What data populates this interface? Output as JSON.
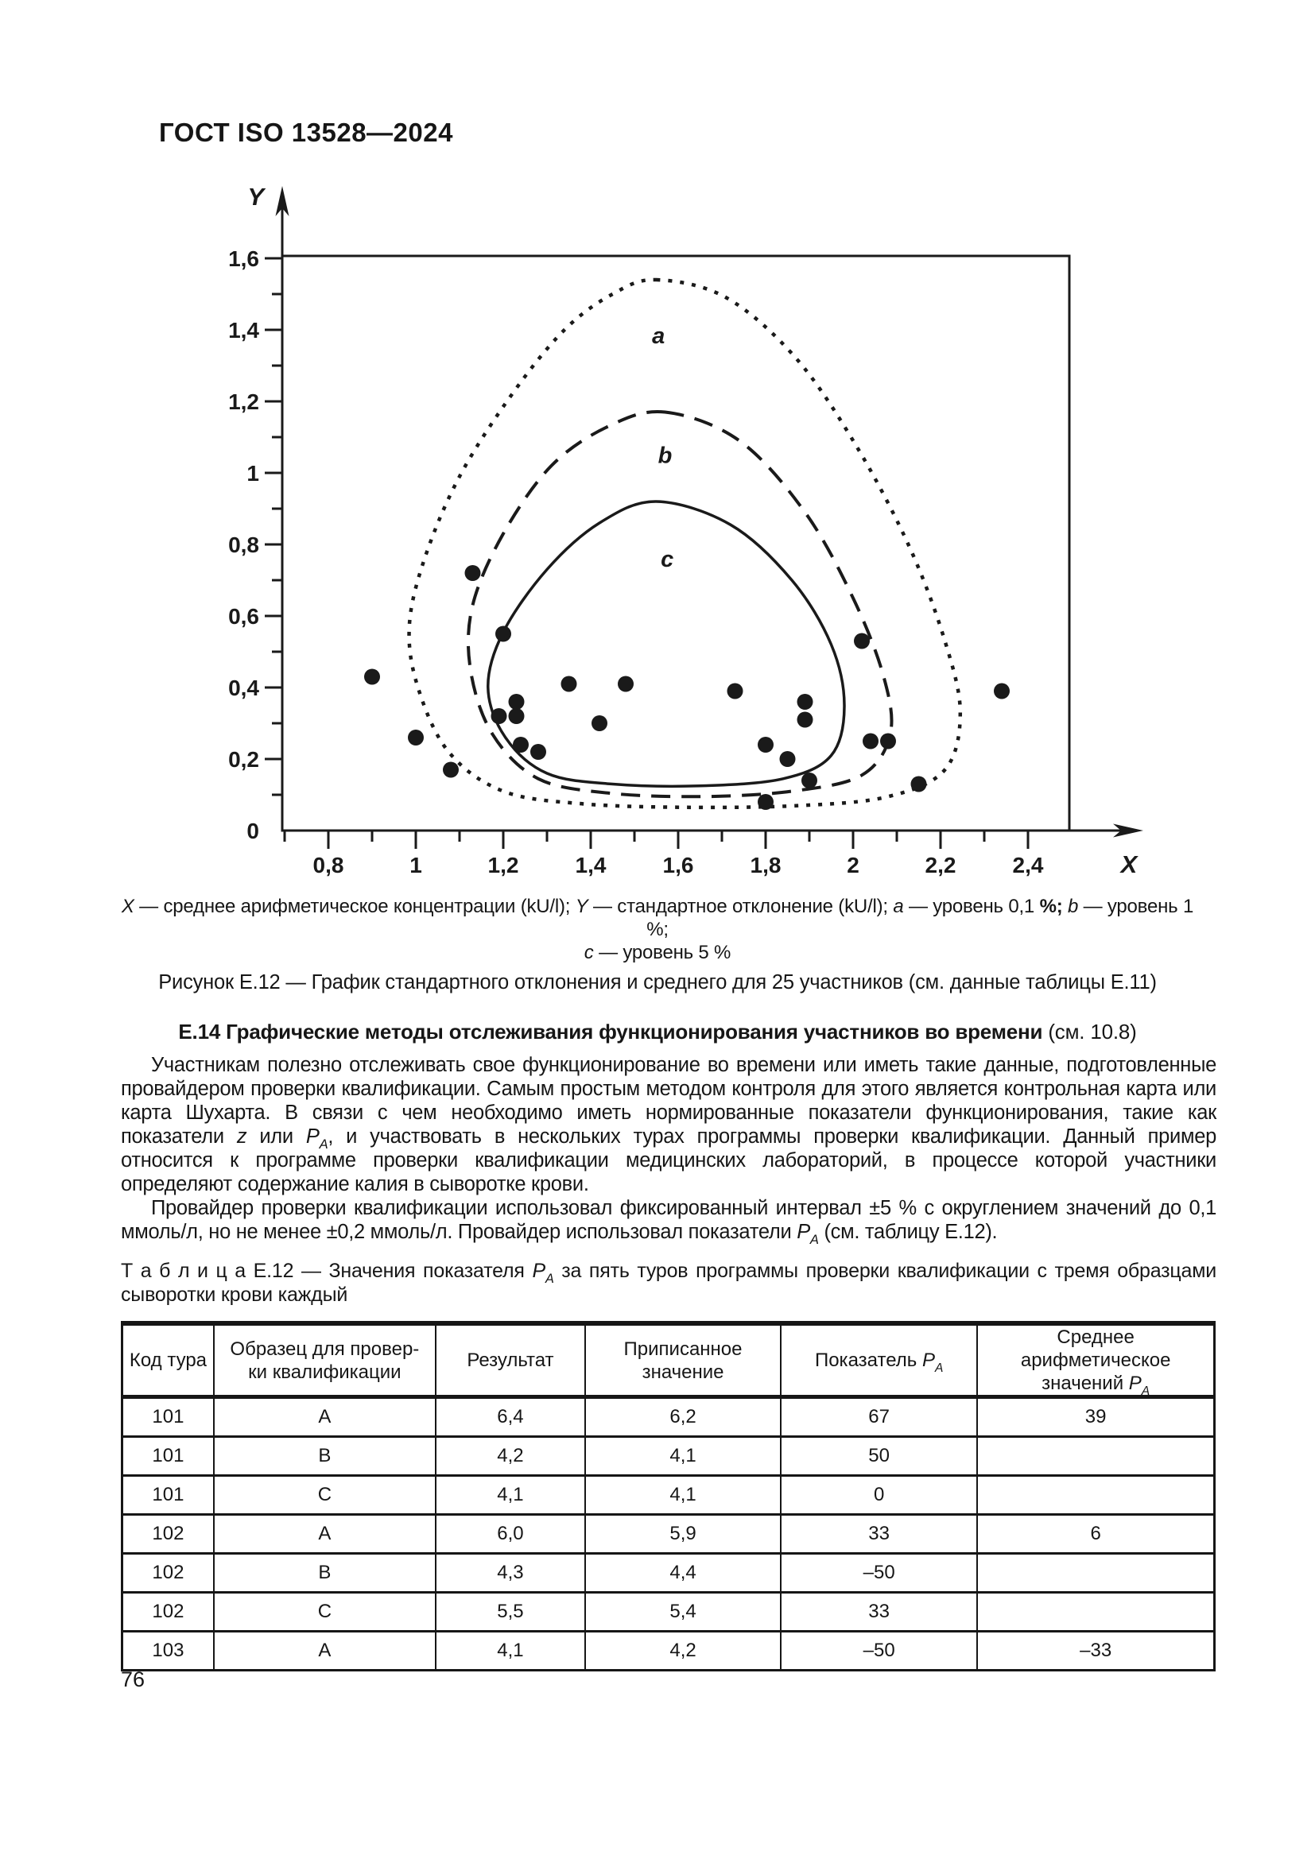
{
  "page": {
    "header": "ГОСТ ISO 13528—2024",
    "page_number": "76"
  },
  "figure": {
    "legend_line1": [
      {
        "t": "X",
        "i": 1
      },
      {
        "t": " — среднее арифметическое концентрации (kU/l); "
      },
      {
        "t": "Y",
        "i": 1
      },
      {
        "t": " — стандартное отклонение (kU/l); "
      },
      {
        "t": "a",
        "i": 1
      },
      {
        "t": " — уровень 0,1 "
      },
      {
        "t": "%;",
        "b": 1
      },
      {
        "t": " "
      },
      {
        "t": "b",
        "i": 1
      },
      {
        "t": " — уровень 1 %;"
      }
    ],
    "legend_line2": [
      {
        "t": "c",
        "i": 1
      },
      {
        "t": " — уровень 5 %"
      }
    ],
    "title": "Рисунок Е.12 — График стандартного отклонения и среднего для 25 участников (см. данные таблицы Е.11)"
  },
  "section": {
    "heading": "Е.14 Графические методы отслеживания функционирования участников во времени",
    "heading_ref": " (см. 10.8)",
    "p1": [
      {
        "t": "Участникам полезно отслеживать свое функционирование во времени или иметь такие данные, подготовленные провайдером проверки квалификации. Самым простым методом контроля для этого является контрольная карта или карта Шухарта. В связи с чем необходимо иметь нормированные показатели функционирования, такие как показатели "
      },
      {
        "t": "z",
        "i": 1
      },
      {
        "t": " или "
      },
      {
        "t": "P",
        "i": 1
      },
      {
        "t": "A",
        "i": 1,
        "sub": 1
      },
      {
        "t": ", и участвовать в нескольких турах программы проверки квалификации. Данный пример относится к программе проверки квалификации медицинских лабораторий, в процессе которой участники определяют содержание калия в сыворотке крови."
      }
    ],
    "p2": [
      {
        "t": "Провайдер проверки квалификации использовал фиксированный интервал ±5 % с округлением значений до 0,1 ммоль/л, но не менее ±0,2 ммоль/л. Провайдер использовал показатели "
      },
      {
        "t": "P",
        "i": 1
      },
      {
        "t": "A",
        "i": 1,
        "sub": 1
      },
      {
        "t": " (см. таблицу Е.12)."
      }
    ]
  },
  "table": {
    "caption": [
      {
        "t": "Т а б л и ц а   Е.12 — Значения показателя "
      },
      {
        "t": "P",
        "i": 1
      },
      {
        "t": "A",
        "i": 1,
        "sub": 1
      },
      {
        "t": " за пять туров программы проверки квалификации с тремя образцами сыворотки крови каждый"
      }
    ],
    "columns": [
      {
        "width": 8.4,
        "label": [
          {
            "t": "Код тура"
          }
        ]
      },
      {
        "width": 20.3,
        "label": [
          {
            "t": "Образец для провер-"
          },
          {
            "br": 1
          },
          {
            "t": "ки квалификации"
          }
        ]
      },
      {
        "width": 13.7,
        "label": [
          {
            "t": "Результат"
          }
        ]
      },
      {
        "width": 17.9,
        "label": [
          {
            "t": "Приписанное"
          },
          {
            "br": 1
          },
          {
            "t": "значение"
          }
        ]
      },
      {
        "width": 18.0,
        "label": [
          {
            "t": "Показатель "
          },
          {
            "t": "P",
            "i": 1
          },
          {
            "t": "A",
            "i": 1,
            "sub": 1
          }
        ]
      },
      {
        "width": 21.7,
        "label": [
          {
            "t": "Среднее арифметическое"
          },
          {
            "br": 1
          },
          {
            "t": "значений "
          },
          {
            "t": "P",
            "i": 1
          },
          {
            "t": "A",
            "i": 1,
            "sub": 1
          }
        ]
      }
    ],
    "rows": [
      [
        "101",
        "A",
        "6,4",
        "6,2",
        "67",
        "39"
      ],
      [
        "101",
        "B",
        "4,2",
        "4,1",
        "50",
        ""
      ],
      [
        "101",
        "C",
        "4,1",
        "4,1",
        "0",
        ""
      ],
      [
        "102",
        "A",
        "6,0",
        "5,9",
        "33",
        "6"
      ],
      [
        "102",
        "B",
        "4,3",
        "4,4",
        "–50",
        ""
      ],
      [
        "102",
        "C",
        "5,5",
        "5,4",
        "33",
        ""
      ],
      [
        "103",
        "A",
        "4,1",
        "4,2",
        "–50",
        "–33"
      ]
    ]
  },
  "chart_data": {
    "type": "scatter",
    "xlabel": "X",
    "ylabel": "Y",
    "xlim": [
      0.695,
      2.495
    ],
    "ylim": [
      0,
      1.607
    ],
    "grid": false,
    "ink_color": "#1a1a1a",
    "background": "#ffffff",
    "x_ticks": [
      {
        "label": "0,8",
        "v": 0.8
      },
      {
        "label": "1",
        "v": 1.0
      },
      {
        "label": "1,2",
        "v": 1.2
      },
      {
        "label": "1,4",
        "v": 1.4
      },
      {
        "label": "1,6",
        "v": 1.6
      },
      {
        "label": "1,8",
        "v": 1.8
      },
      {
        "label": "2",
        "v": 2.0
      },
      {
        "label": "2,2",
        "v": 2.2
      },
      {
        "label": "2,4",
        "v": 2.4
      }
    ],
    "y_ticks": [
      {
        "label": "0",
        "v": 0
      },
      {
        "label": "0,2",
        "v": 0.2
      },
      {
        "label": "0,4",
        "v": 0.4
      },
      {
        "label": "0,6",
        "v": 0.6
      },
      {
        "label": "0,8",
        "v": 0.8
      },
      {
        "label": "1",
        "v": 1.0
      },
      {
        "label": "1,2",
        "v": 1.2
      },
      {
        "label": "1,4",
        "v": 1.4
      },
      {
        "label": "1,6",
        "v": 1.6
      }
    ],
    "x_minor_ticks": [
      0.7,
      0.9,
      1.1,
      1.3,
      1.5,
      1.7,
      1.9,
      2.1,
      2.3
    ],
    "y_minor_ticks": [
      0.1,
      0.3,
      0.5,
      0.7,
      0.9,
      1.1,
      1.3,
      1.5
    ],
    "points": [
      [
        0.9,
        0.43
      ],
      [
        1.0,
        0.26
      ],
      [
        1.08,
        0.17
      ],
      [
        1.13,
        0.72
      ],
      [
        1.19,
        0.32
      ],
      [
        1.2,
        0.55
      ],
      [
        1.23,
        0.36
      ],
      [
        1.23,
        0.32
      ],
      [
        1.24,
        0.24
      ],
      [
        1.28,
        0.22
      ],
      [
        1.35,
        0.41
      ],
      [
        1.42,
        0.3
      ],
      [
        1.48,
        0.41
      ],
      [
        1.73,
        0.39
      ],
      [
        1.8,
        0.24
      ],
      [
        1.8,
        0.08
      ],
      [
        1.85,
        0.2
      ],
      [
        1.89,
        0.36
      ],
      [
        1.89,
        0.31
      ],
      [
        1.9,
        0.14
      ],
      [
        2.02,
        0.53
      ],
      [
        2.04,
        0.25
      ],
      [
        2.08,
        0.25
      ],
      [
        2.15,
        0.13
      ],
      [
        2.34,
        0.39
      ]
    ],
    "contours": [
      {
        "name": "a",
        "level": "0,1 %",
        "style": "dotted",
        "label_pos": [
          1.555,
          1.385
        ],
        "points": [
          [
            1.55,
            1.54
          ],
          [
            1.71,
            1.49
          ],
          [
            1.87,
            1.32
          ],
          [
            2.01,
            1.07
          ],
          [
            2.13,
            0.79
          ],
          [
            2.21,
            0.53
          ],
          [
            2.245,
            0.33
          ],
          [
            2.21,
            0.17
          ],
          [
            2.08,
            0.095
          ],
          [
            1.88,
            0.07
          ],
          [
            1.62,
            0.065
          ],
          [
            1.38,
            0.075
          ],
          [
            1.2,
            0.11
          ],
          [
            1.075,
            0.22
          ],
          [
            1.005,
            0.4
          ],
          [
            0.985,
            0.57
          ],
          [
            1.02,
            0.76
          ],
          [
            1.1,
            0.99
          ],
          [
            1.22,
            1.22
          ],
          [
            1.34,
            1.4
          ],
          [
            1.45,
            1.5
          ]
        ]
      },
      {
        "name": "b",
        "level": "1 %",
        "style": "dashed",
        "label_pos": [
          1.57,
          1.05
        ],
        "points": [
          [
            1.57,
            1.17
          ],
          [
            1.74,
            1.09
          ],
          [
            1.89,
            0.89
          ],
          [
            2.0,
            0.65
          ],
          [
            2.07,
            0.43
          ],
          [
            2.085,
            0.27
          ],
          [
            2.02,
            0.155
          ],
          [
            1.86,
            0.11
          ],
          [
            1.65,
            0.095
          ],
          [
            1.44,
            0.105
          ],
          [
            1.28,
            0.145
          ],
          [
            1.175,
            0.27
          ],
          [
            1.125,
            0.45
          ],
          [
            1.13,
            0.63
          ],
          [
            1.2,
            0.83
          ],
          [
            1.31,
            1.02
          ],
          [
            1.44,
            1.13
          ]
        ]
      },
      {
        "name": "c",
        "level": "5 %",
        "style": "solid",
        "label_pos": [
          1.575,
          0.76
        ],
        "points": [
          [
            1.55,
            0.92
          ],
          [
            1.72,
            0.855
          ],
          [
            1.86,
            0.7
          ],
          [
            1.95,
            0.52
          ],
          [
            1.98,
            0.35
          ],
          [
            1.95,
            0.21
          ],
          [
            1.84,
            0.145
          ],
          [
            1.65,
            0.125
          ],
          [
            1.45,
            0.13
          ],
          [
            1.3,
            0.16
          ],
          [
            1.205,
            0.26
          ],
          [
            1.165,
            0.4
          ],
          [
            1.2,
            0.555
          ],
          [
            1.3,
            0.73
          ],
          [
            1.42,
            0.86
          ]
        ]
      }
    ]
  }
}
